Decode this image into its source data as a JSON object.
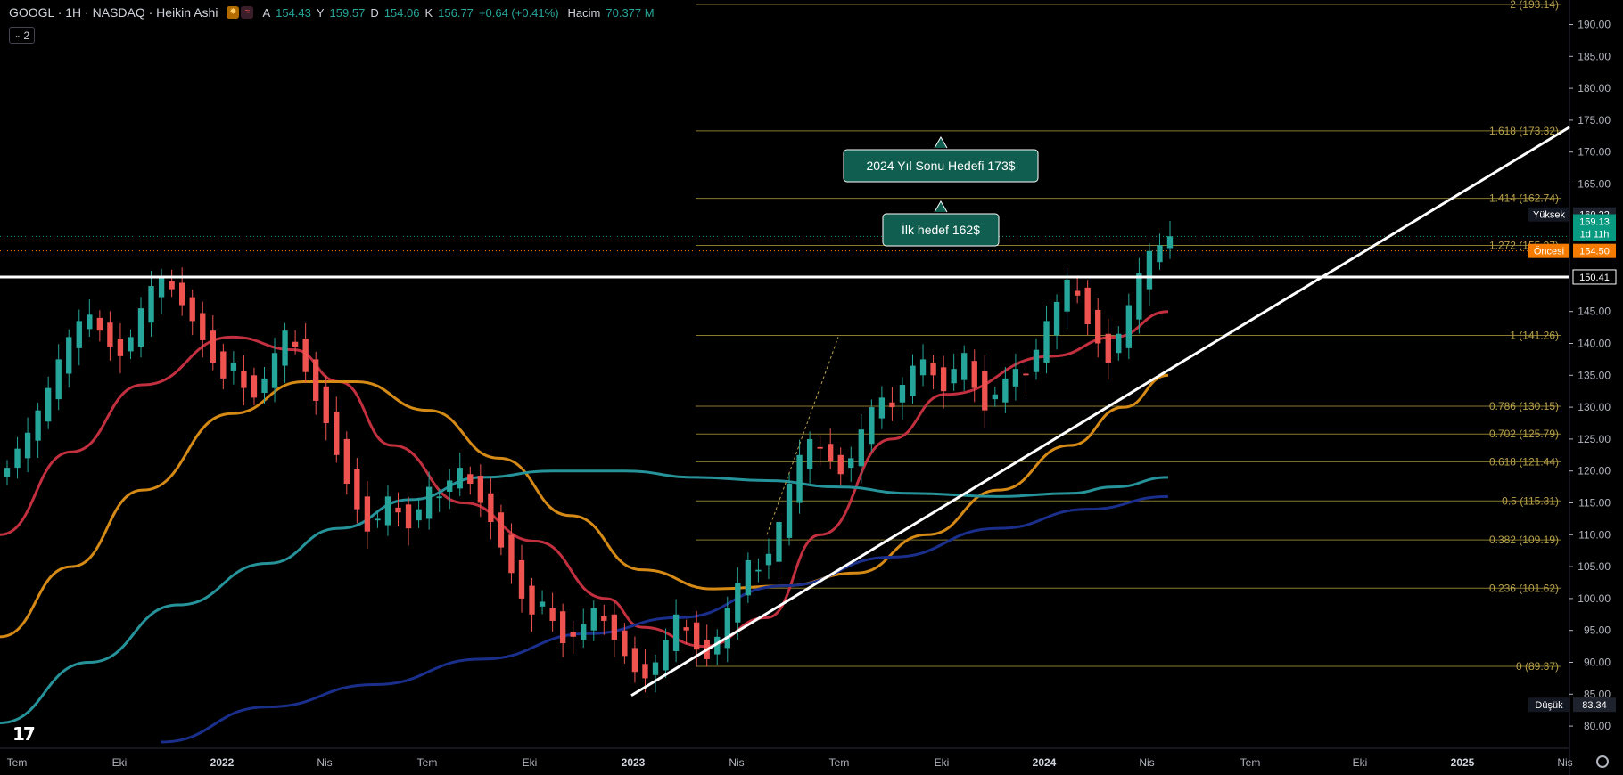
{
  "legend": {
    "title": "GOOGL · 1H · NASDAQ · Heikin Ashi",
    "a_label": "A",
    "a_value": "154.43",
    "y_label": "Y",
    "y_value": "159.57",
    "d_label": "D",
    "d_value": "154.06",
    "k_label": "K",
    "k_value": "156.77",
    "change": "+0.64 (+0.41%)",
    "volume_label": "Hacim",
    "volume_value": "70.377 M"
  },
  "collapse": {
    "label": "2"
  },
  "price_axis": {
    "ticks": [
      "190.00",
      "185.00",
      "180.00",
      "175.00",
      "170.00",
      "165.00",
      "145.00",
      "140.00",
      "135.00",
      "130.00",
      "125.00",
      "120.00",
      "115.00",
      "110.00",
      "105.00",
      "100.00",
      "95.00",
      "90.00",
      "85.00",
      "80.00"
    ],
    "badges": [
      {
        "label": "Yüksek",
        "value": "160.22",
        "bg": "#131722",
        "vbg": "#1e222d"
      },
      {
        "label": "",
        "value": "159.13",
        "sub": "1d 11h",
        "bg": "#089981"
      },
      {
        "label": "Öncesi",
        "value": "154.50",
        "bg": "#f57c00"
      },
      {
        "label": "",
        "value": "150.41",
        "bg": "#000000",
        "border": "#ffffff"
      },
      {
        "label": "Düşük",
        "value": "83.34",
        "bg": "#131722",
        "vbg": "#1e222d"
      }
    ]
  },
  "fib_levels": [
    {
      "label": "2 (193.14)",
      "price": 193.14
    },
    {
      "label": "1.618 (173.32)",
      "price": 173.32
    },
    {
      "label": "1.414 (162.74)",
      "price": 162.74
    },
    {
      "label": "1.272 (155.37)",
      "price": 155.37
    },
    {
      "label": "1 (141.26)",
      "price": 141.26
    },
    {
      "label": "0.786 (130.15)",
      "price": 130.15
    },
    {
      "label": "0.702 (125.79)",
      "price": 125.79
    },
    {
      "label": "0.618 (121.44)",
      "price": 121.44
    },
    {
      "label": "0.5 (115.31)",
      "price": 115.31
    },
    {
      "label": "0.382 (109.19)",
      "price": 109.19
    },
    {
      "label": "0.236 (101.62)",
      "price": 101.62
    },
    {
      "label": "0 (89.37)",
      "price": 89.37
    }
  ],
  "time_axis": [
    {
      "label": "Tem",
      "bold": false
    },
    {
      "label": "Eki",
      "bold": false
    },
    {
      "label": "2022",
      "bold": true
    },
    {
      "label": "Nis",
      "bold": false
    },
    {
      "label": "Tem",
      "bold": false
    },
    {
      "label": "Eki",
      "bold": false
    },
    {
      "label": "2023",
      "bold": true
    },
    {
      "label": "Nis",
      "bold": false
    },
    {
      "label": "Tem",
      "bold": false
    },
    {
      "label": "Eki",
      "bold": false
    },
    {
      "label": "2024",
      "bold": true
    },
    {
      "label": "Nis",
      "bold": false
    },
    {
      "label": "Tem",
      "bold": false
    },
    {
      "label": "Eki",
      "bold": false
    },
    {
      "label": "2025",
      "bold": true
    },
    {
      "label": "Nis",
      "bold": false
    }
  ],
  "callouts": [
    {
      "text": "2024 Yıl Sonu Hedefi 173$"
    },
    {
      "text": "İlk hedef 162$"
    }
  ],
  "horizontal_line_price": 150.41,
  "colors": {
    "up": "#26a69a",
    "down": "#ef5350",
    "fib": "#8a7a2e",
    "ma_fast": "#c2303f",
    "ma_mid": "#d68a16",
    "ma_slow": "#26939a",
    "ma_long": "#1a2f8c",
    "callout_bg": "#0f5e4f"
  },
  "chart_data": {
    "type": "candlestick",
    "symbol": "GOOGL",
    "interval": "1H",
    "ylim": [
      80,
      195
    ],
    "closes": [
      120.5,
      123.5,
      126.0,
      129.5,
      133.0,
      137.5,
      141.0,
      143.5,
      144.5,
      142.0,
      139.5,
      138.0,
      141.0,
      145.5,
      149.0,
      150.5,
      148.5,
      146.0,
      143.5,
      140.5,
      137.0,
      134.5,
      137.0,
      133.0,
      131.5,
      134.5,
      138.5,
      142.0,
      139.5,
      135.5,
      131.0,
      127.5,
      122.5,
      118.0,
      114.0,
      110.5,
      112.5,
      116.0,
      113.5,
      111.0,
      114.0,
      117.5,
      116.0,
      118.5,
      120.5,
      118.0,
      115.0,
      112.0,
      108.0,
      104.0,
      100.0,
      97.5,
      99.5,
      96.5,
      93.0,
      94.0,
      96.0,
      98.5,
      96.5,
      93.5,
      91.0,
      88.5,
      87.5,
      90.0,
      93.5,
      97.5,
      95.0,
      92.0,
      90.5,
      94.0,
      98.5,
      102.5,
      106.0,
      104.5,
      107.0,
      112.0,
      118.0,
      122.5,
      125.0,
      123.5,
      121.5,
      119.5,
      122.0,
      126.5,
      130.0,
      131.5,
      130.0,
      133.5,
      136.5,
      137.5,
      135.0,
      132.5,
      136.0,
      138.5,
      133.0,
      129.5,
      132.0,
      134.5,
      136.0,
      135.0,
      139.0,
      143.5,
      146.5,
      150.0,
      147.5,
      143.0,
      140.0,
      137.0,
      141.5,
      146.0,
      151.0,
      154.5,
      155.4,
      156.8
    ]
  }
}
